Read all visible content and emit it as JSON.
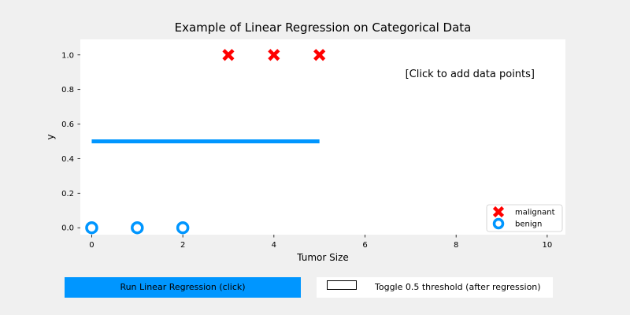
{
  "chart_data": {
    "type": "scatter",
    "title": "Example of Linear Regression on Categorical Data",
    "xlabel": "Tumor Size",
    "ylabel": "y",
    "xlim": [
      -0.25,
      10.4
    ],
    "ylim": [
      -0.04,
      1.09
    ],
    "xticks": [
      0,
      2,
      4,
      6,
      8,
      10
    ],
    "yticks": [
      0.0,
      0.2,
      0.4,
      0.6,
      0.8,
      1.0
    ],
    "grid": false,
    "legend_position": "lower-right",
    "series": [
      {
        "name": "malignant",
        "marker": "x",
        "color": "#ff0000",
        "x": [
          3,
          4,
          5
        ],
        "y": [
          1,
          1,
          1
        ]
      },
      {
        "name": "benign",
        "marker": "o",
        "color": "#0096ff",
        "x": [
          0,
          1,
          2
        ],
        "y": [
          0,
          0,
          0
        ]
      }
    ],
    "regression_line": {
      "color": "#0096ff",
      "x": [
        0,
        5
      ],
      "y": [
        0.5,
        0.5
      ]
    },
    "annotation": {
      "text": "[Click to add data points]",
      "position": "upper-right"
    }
  },
  "controls": {
    "run_label": "Run Linear Regression (click)",
    "toggle_label": "Toggle 0.5 threshold (after regression)"
  },
  "colors": {
    "figure_background": "#f0f0f0",
    "axes_background": "#ffffff",
    "accent": "#0096ff",
    "malignant": "#ff0000"
  }
}
